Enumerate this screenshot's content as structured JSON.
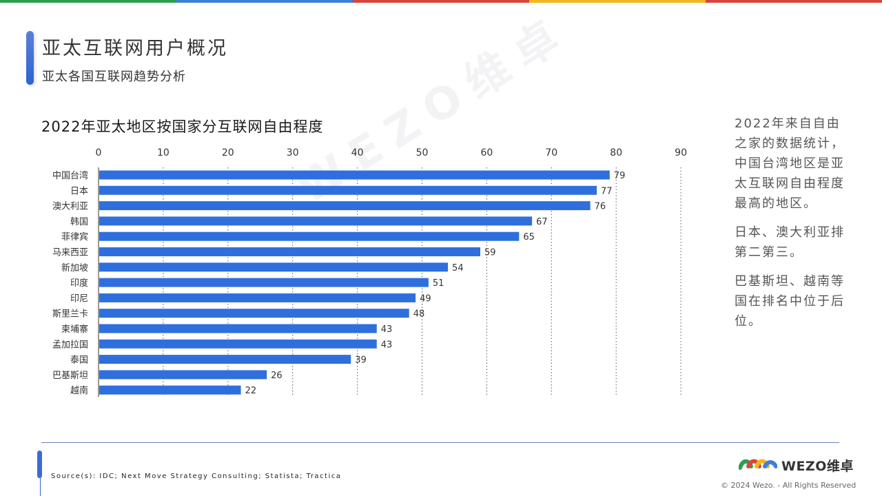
{
  "header": {
    "title": "亚太互联网用户概况",
    "subtitle": "亚太各国互联网趋势分析"
  },
  "colors": {
    "bar": "#2f6fdd",
    "topbar": [
      "#2e9e4f",
      "#3f7fd9",
      "#d9453a",
      "#f2b51d",
      "#d9453a"
    ]
  },
  "chart_data": {
    "type": "bar",
    "orientation": "horizontal",
    "title": "2022年亚太地区按国家分互联网自由程度",
    "categories": [
      "中国台湾",
      "日本",
      "澳大利亚",
      "韩国",
      "菲律宾",
      "马来西亚",
      "新加坡",
      "印度",
      "印尼",
      "斯里兰卡",
      "柬埔寨",
      "孟加拉国",
      "泰国",
      "巴基斯坦",
      "越南"
    ],
    "values": [
      79,
      77,
      76,
      67,
      65,
      59,
      54,
      51,
      49,
      48,
      43,
      43,
      39,
      26,
      22
    ],
    "xlim": [
      0,
      90
    ],
    "xticks": [
      "0",
      "10",
      "20",
      "30",
      "40",
      "50",
      "60",
      "70",
      "80",
      "90"
    ],
    "x_axis_position": "top",
    "grid": "vertical dotted",
    "data_labels": true
  },
  "side_text": {
    "p1": "2022年来自自由之家的数据统计，中国台湾地区是亚太互联网自由程度最高的地区。",
    "p2": "日本、澳大利亚排第二第三。",
    "p3": "巴基斯坦、越南等国在排名中位于后位。"
  },
  "watermark": "WEZO维卓",
  "footer": {
    "source": "Source(s): IDC; Next Move Strategy Consulting; Statista; Tractica",
    "logo_text": "WEZO维卓",
    "copyright": "© 2024 Wezo. - All Rights Reserved"
  }
}
